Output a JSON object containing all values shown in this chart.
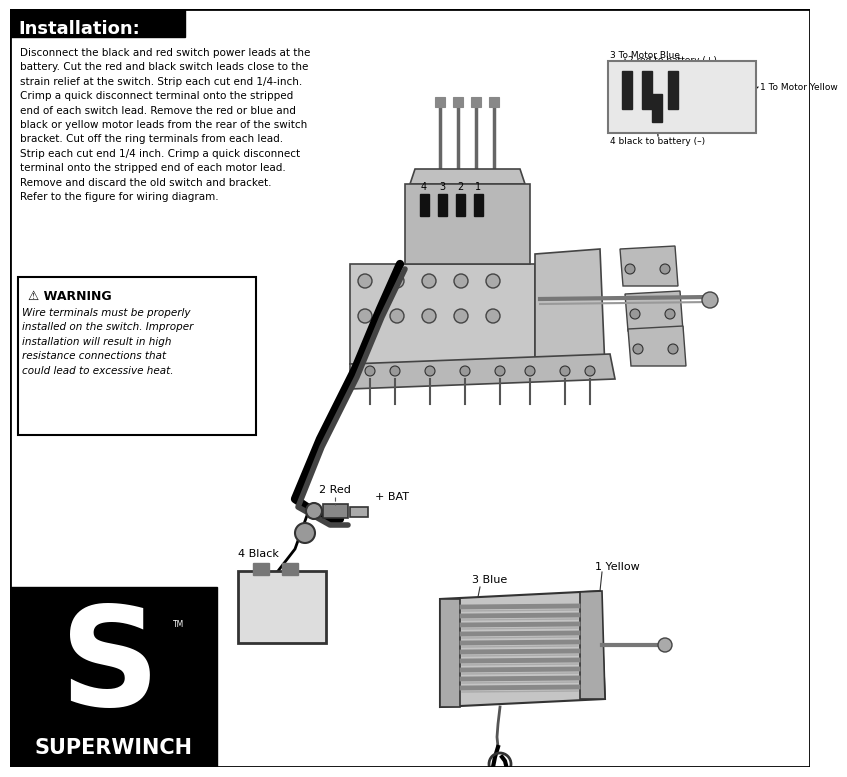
{
  "bg_color": "#ffffff",
  "title": "Installation:",
  "title_bg": "#000000",
  "title_color": "#ffffff",
  "body_text": "Disconnect the black and red switch power leads at the\nbattery. Cut the red and black switch leads close to the\nstrain relief at the switch. Strip each cut end 1/4-inch.\nCrimp a quick disconnect terminal onto the stripped\nend of each switch lead. Remove the red or blue and\nblack or yellow motor leads from the rear of the switch\nbracket. Cut off the ring terminals from each lead.\nStrip each cut end 1/4 inch. Crimp a quick disconnect\nterminal onto the stripped end of each motor lead.\nRemove and discard the old switch and bracket.\nRefer to the figure for wiring diagram.",
  "warning_title": "⚠ WARNING",
  "warning_text": "Wire terminals must be properly\ninstalled on the switch. Improper\ninstallation will result in high\nresistance connections that\ncould lead to excessive heat.",
  "diagram_labels": [
    "2 Red",
    "+ BAT",
    "4 Black",
    "3 Blue",
    "1 Yellow"
  ],
  "connector_labels": [
    "3 To Motor Blue",
    "2 red to battery (+)",
    "1 To Motor Yellow",
    "4 black to battery (–)"
  ],
  "brand": "SUPERWINCH",
  "logo_bg": "#000000",
  "logo_color": "#ffffff"
}
